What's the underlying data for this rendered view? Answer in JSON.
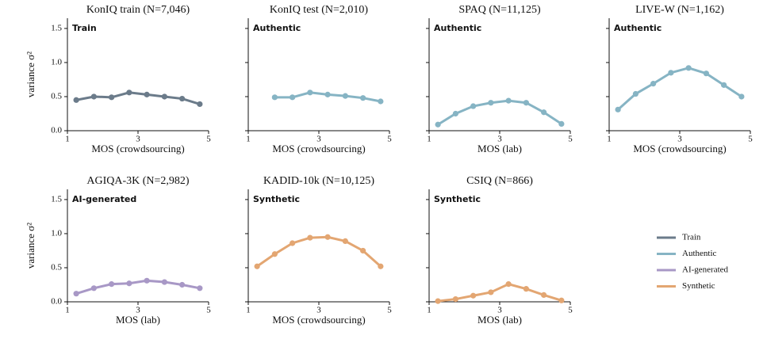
{
  "chart_data": [
    {
      "type": "line",
      "title": "KonIQ train  (N=7,046)",
      "xlabel": "MOS (crowdsourcing)",
      "ylabel": "variance σ²",
      "x": [
        1.25,
        1.75,
        2.25,
        2.75,
        3.25,
        3.75,
        4.25,
        4.75
      ],
      "series": [
        {
          "name": "Train",
          "color": "#6b7b8a",
          "values": [
            0.45,
            0.5,
            0.49,
            0.56,
            0.53,
            0.5,
            0.47,
            0.39
          ]
        }
      ],
      "xlim": [
        1,
        5
      ],
      "xticks": [
        1,
        3,
        5
      ],
      "ylim": [
        0,
        1.65
      ],
      "yticks": [
        {
          "value": 0,
          "label": "0.0"
        },
        0.5,
        {
          "value": 1,
          "label": "1.0"
        },
        1.5
      ]
    },
    {
      "type": "line",
      "title": "KonIQ test  (N=2,010)",
      "xlabel": "MOS (crowdsourcing)",
      "x": [
        1.75,
        2.25,
        2.75,
        3.25,
        3.75,
        4.25,
        4.75
      ],
      "series": [
        {
          "name": "Authentic",
          "color": "#86b4c4",
          "values": [
            0.49,
            0.49,
            0.56,
            0.53,
            0.51,
            0.48,
            0.43
          ]
        }
      ],
      "xlim": [
        1,
        5
      ],
      "xticks": [
        1,
        3,
        5
      ],
      "ylim": [
        0,
        1.65
      ],
      "yticks": [
        0,
        0.5,
        1,
        1.5
      ]
    },
    {
      "type": "line",
      "title": "SPAQ  (N=11,125)",
      "xlabel": "MOS (lab)",
      "x": [
        1.25,
        1.75,
        2.25,
        2.75,
        3.25,
        3.75,
        4.25,
        4.75
      ],
      "series": [
        {
          "name": "Authentic",
          "color": "#86b4c4",
          "values": [
            0.09,
            0.25,
            0.36,
            0.41,
            0.44,
            0.41,
            0.27,
            0.1
          ]
        }
      ],
      "xlim": [
        1,
        5
      ],
      "xticks": [
        1,
        3,
        5
      ],
      "ylim": [
        0,
        1.65
      ],
      "yticks": [
        0,
        0.5,
        1,
        1.5
      ]
    },
    {
      "type": "line",
      "title": "LIVE-W  (N=1,162)",
      "xlabel": "MOS (crowdsourcing)",
      "x": [
        1.25,
        1.75,
        2.25,
        2.75,
        3.25,
        3.75,
        4.25,
        4.75
      ],
      "series": [
        {
          "name": "Authentic",
          "color": "#86b4c4",
          "values": [
            0.31,
            0.54,
            0.69,
            0.85,
            0.92,
            0.84,
            0.67,
            0.5
          ]
        }
      ],
      "xlim": [
        1,
        5
      ],
      "xticks": [
        1,
        3,
        5
      ],
      "ylim": [
        0,
        1.65
      ],
      "yticks": [
        0,
        0.5,
        1,
        1.5
      ]
    },
    {
      "type": "line",
      "title": "AGIQA-3K  (N=2,982)",
      "xlabel": "MOS (lab)",
      "ylabel": "variance σ²",
      "x": [
        1.25,
        1.75,
        2.25,
        2.75,
        3.25,
        3.75,
        4.25,
        4.75
      ],
      "series": [
        {
          "name": "AI-generated",
          "color": "#a898c6",
          "values": [
            0.12,
            0.2,
            0.26,
            0.27,
            0.31,
            0.29,
            0.25,
            0.2
          ]
        }
      ],
      "xlim": [
        1,
        5
      ],
      "xticks": [
        1,
        3,
        5
      ],
      "ylim": [
        0,
        1.65
      ],
      "yticks": [
        {
          "value": 0,
          "label": "0.0"
        },
        0.5,
        {
          "value": 1,
          "label": "1.0"
        },
        1.5
      ]
    },
    {
      "type": "line",
      "title": "KADID-10k  (N=10,125)",
      "xlabel": "MOS (crowdsourcing)",
      "x": [
        1.25,
        1.75,
        2.25,
        2.75,
        3.25,
        3.75,
        4.25,
        4.75
      ],
      "series": [
        {
          "name": "Synthetic",
          "color": "#e3a672",
          "values": [
            0.52,
            0.7,
            0.86,
            0.94,
            0.95,
            0.89,
            0.75,
            0.52
          ]
        }
      ],
      "xlim": [
        1,
        5
      ],
      "xticks": [
        1,
        3,
        5
      ],
      "ylim": [
        0,
        1.65
      ],
      "yticks": [
        0,
        0.5,
        1,
        1.5
      ]
    },
    {
      "type": "line",
      "title": "CSIQ  (N=866)",
      "xlabel": "MOS (lab)",
      "x": [
        1.25,
        1.75,
        2.25,
        2.75,
        3.25,
        3.75,
        4.25,
        4.75
      ],
      "series": [
        {
          "name": "Synthetic",
          "color": "#e3a672",
          "values": [
            0.01,
            0.04,
            0.09,
            0.14,
            0.26,
            0.19,
            0.1,
            0.02
          ]
        }
      ],
      "xlim": [
        1,
        5
      ],
      "xticks": [
        1,
        3,
        5
      ],
      "ylim": [
        0,
        1.65
      ],
      "yticks": [
        0,
        0.5,
        1,
        1.5
      ]
    }
  ]
}
